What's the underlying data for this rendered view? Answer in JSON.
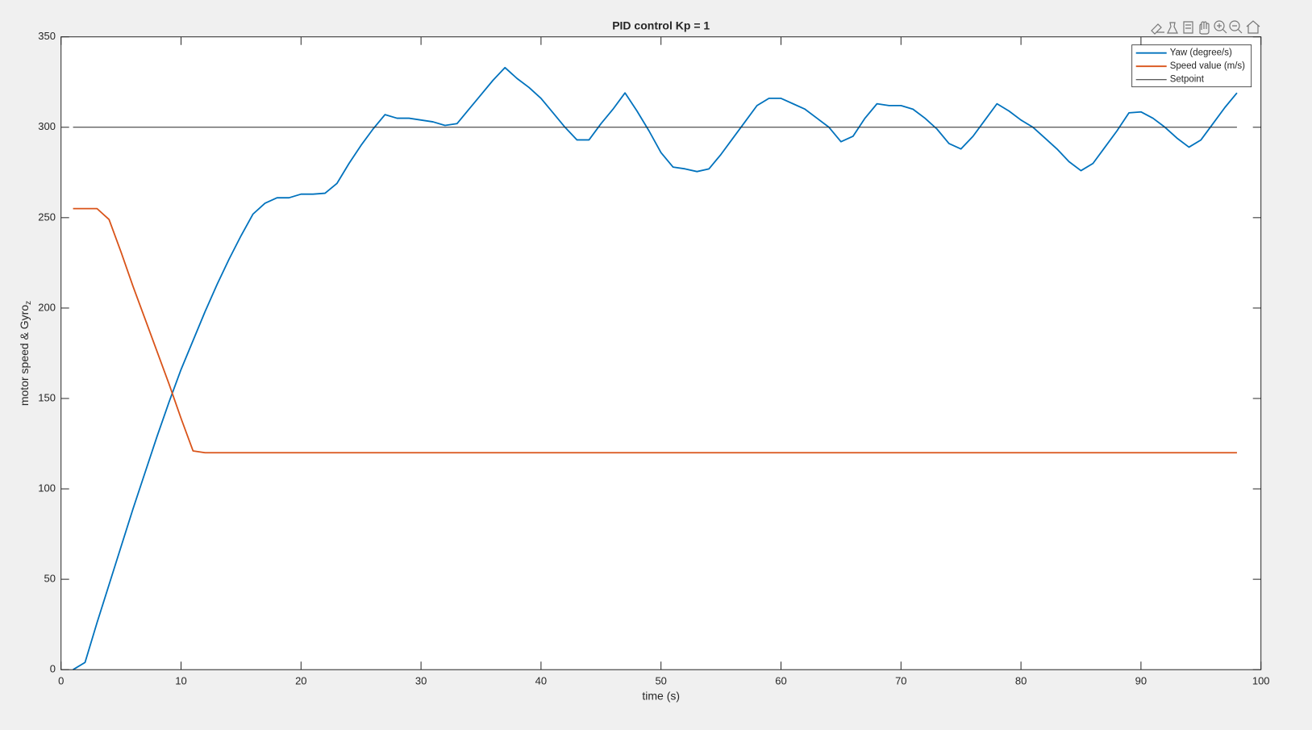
{
  "chart_data": {
    "type": "line",
    "title": "PID control Kp = 1",
    "xlabel": "time (s)",
    "ylabel": {
      "text": "motor speed & Gyro",
      "subscript": "z"
    },
    "xlim": [
      0,
      100
    ],
    "xticks": [
      0,
      10,
      20,
      30,
      40,
      50,
      60,
      70,
      80,
      90,
      100
    ],
    "ylim": [
      0,
      350
    ],
    "yticks": [
      0,
      50,
      100,
      150,
      200,
      250,
      300,
      350
    ],
    "grid": false,
    "legend": "top-right",
    "series": [
      {
        "name": "Yaw (degree/s)",
        "color": "#0072bd",
        "x": [
          1,
          2,
          3,
          4,
          5,
          6,
          7,
          8,
          9,
          10,
          11,
          12,
          13,
          14,
          15,
          16,
          17,
          18,
          19,
          20,
          21,
          22,
          23,
          24,
          25,
          26,
          27,
          28,
          29,
          30,
          31,
          32,
          33,
          34,
          35,
          36,
          37,
          38,
          39,
          40,
          41,
          42,
          43,
          44,
          45,
          46,
          47,
          48,
          49,
          50,
          51,
          52,
          53,
          54,
          55,
          56,
          57,
          58,
          59,
          60,
          61,
          62,
          63,
          64,
          65,
          66,
          67,
          68,
          69,
          70,
          71,
          72,
          73,
          74,
          75,
          76,
          77,
          78,
          79,
          80,
          81,
          82,
          83,
          84,
          85,
          86,
          87,
          88,
          89,
          90,
          91,
          92,
          93,
          94,
          95,
          96,
          97,
          98
        ],
        "values": [
          0,
          4,
          26,
          47,
          68,
          89,
          109,
          129,
          148,
          166,
          182,
          198,
          213,
          227,
          240,
          252,
          258,
          261,
          261,
          263,
          263,
          263.5,
          269,
          280,
          290,
          299,
          307,
          305,
          305,
          304,
          303,
          301,
          302,
          310,
          318,
          326,
          333,
          327,
          322,
          316,
          308,
          300,
          293,
          293,
          302,
          310,
          319,
          309,
          298,
          286,
          278,
          277,
          275.5,
          277,
          285,
          294,
          303,
          312,
          316,
          316,
          313,
          310,
          305,
          300,
          292,
          295,
          305,
          313,
          312,
          312,
          310,
          305,
          299,
          291,
          288,
          295,
          304,
          313,
          309,
          304,
          300,
          294,
          288,
          281,
          276,
          280,
          289,
          298,
          308,
          308.5,
          305,
          300,
          294,
          289,
          293,
          302,
          311,
          319
        ]
      },
      {
        "name": "Speed value (m/s)",
        "color": "#d95319",
        "x": [
          1,
          2,
          3,
          4,
          5,
          6,
          7,
          8,
          9,
          10,
          11,
          12,
          13,
          14,
          15,
          16,
          17,
          18,
          19,
          20,
          21,
          22,
          23,
          24,
          25,
          26,
          27,
          28,
          29,
          30,
          31,
          32,
          33,
          34,
          35,
          36,
          37,
          38,
          39,
          40,
          41,
          42,
          43,
          44,
          45,
          46,
          47,
          48,
          49,
          50,
          51,
          52,
          53,
          54,
          55,
          56,
          57,
          58,
          59,
          60,
          61,
          62,
          63,
          64,
          65,
          66,
          67,
          68,
          69,
          70,
          71,
          72,
          73,
          74,
          75,
          76,
          77,
          78,
          79,
          80,
          81,
          82,
          83,
          84,
          85,
          86,
          87,
          88,
          89,
          90,
          91,
          92,
          93,
          94,
          95,
          96,
          97,
          98
        ],
        "values": [
          255,
          255,
          255,
          249,
          231,
          212,
          194,
          176,
          158,
          139,
          121,
          120,
          120,
          120,
          120,
          120,
          120,
          120,
          120,
          120,
          120,
          120,
          120,
          120,
          120,
          120,
          120,
          120,
          120,
          120,
          120,
          120,
          120,
          120,
          120,
          120,
          120,
          120,
          120,
          120,
          120,
          120,
          120,
          120,
          120,
          120,
          120,
          120,
          120,
          120,
          120,
          120,
          120,
          120,
          120,
          120,
          120,
          120,
          120,
          120,
          120,
          120,
          120,
          120,
          120,
          120,
          120,
          120,
          120,
          120,
          120,
          120,
          120,
          120,
          120,
          120,
          120,
          120,
          120,
          120,
          120,
          120,
          120,
          120,
          120,
          120,
          120,
          120,
          120,
          120,
          120,
          120,
          120,
          120,
          120,
          120,
          120,
          120
        ]
      },
      {
        "name": "Setpoint",
        "color": "#262626",
        "x": [
          1,
          98
        ],
        "values": [
          300,
          300
        ]
      }
    ]
  }
}
